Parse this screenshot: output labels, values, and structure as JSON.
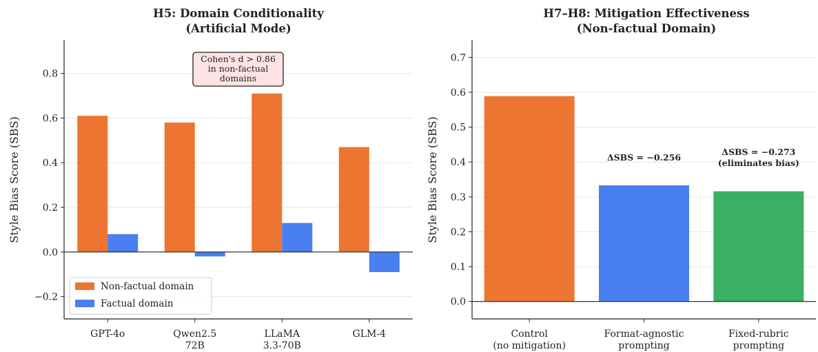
{
  "colors": {
    "nonfactual": "#ED7532",
    "factual": "#4A7FEF",
    "fixed_rubric": "#3AB062",
    "grid": "#e6e6e6",
    "axis": "#222222",
    "annotation_text": "#d62728",
    "annotation_bg": "#fde3e3"
  },
  "chart_data": [
    {
      "type": "bar",
      "title": "H5: Domain Conditionality",
      "subtitle": "(Artificial Mode)",
      "ylabel": "Style Bias Score (SBS)",
      "xlabel": "",
      "ylim": [
        -0.3,
        0.95
      ],
      "yticks": [
        -0.2,
        0.0,
        0.2,
        0.4,
        0.6,
        0.8
      ],
      "ytick_labels": [
        "−0.2",
        "0.0",
        "0.2",
        "0.4",
        "0.6",
        "0.8"
      ],
      "grid": true,
      "categories": [
        {
          "line1": "GPT-4o",
          "line2": ""
        },
        {
          "line1": "Qwen2.5",
          "line2": "72B"
        },
        {
          "line1": "LLaMA",
          "line2": "3.3-70B"
        },
        {
          "line1": "GLM-4",
          "line2": ""
        }
      ],
      "series": [
        {
          "name": "Non-factual domain",
          "values": [
            0.61,
            0.58,
            0.71,
            0.47
          ]
        },
        {
          "name": "Factual domain",
          "values": [
            0.08,
            -0.02,
            0.13,
            -0.09
          ]
        }
      ],
      "legend_position": "bottom-left",
      "annotation": {
        "lines": [
          "Cohen's d > 0.86",
          "in non-factual",
          "domains"
        ]
      }
    },
    {
      "type": "bar",
      "title": "H7–H8: Mitigation Effectiveness",
      "subtitle": "(Non-factual Domain)",
      "ylabel": "Style Bias Score (SBS)",
      "xlabel": "",
      "ylim": [
        -0.05,
        0.75
      ],
      "yticks": [
        0.0,
        0.1,
        0.2,
        0.3,
        0.4,
        0.5,
        0.6,
        0.7
      ],
      "ytick_labels": [
        "0.0",
        "0.1",
        "0.2",
        "0.3",
        "0.4",
        "0.5",
        "0.6",
        "0.7"
      ],
      "grid": true,
      "categories": [
        {
          "line1": "Control",
          "line2": "(no mitigation)"
        },
        {
          "line1": "Format-agnostic",
          "line2": "prompting"
        },
        {
          "line1": "Fixed-rubric",
          "line2": "prompting"
        }
      ],
      "values": [
        0.589,
        0.333,
        0.316
      ],
      "bar_color_keys": [
        "nonfactual",
        "factual",
        "fixed_rubric"
      ],
      "bar_annotations": [
        {
          "lines": []
        },
        {
          "lines": [
            "ΔSBS = −0.256"
          ]
        },
        {
          "lines": [
            "ΔSBS = −0.273",
            "(eliminates bias)"
          ]
        }
      ]
    }
  ]
}
